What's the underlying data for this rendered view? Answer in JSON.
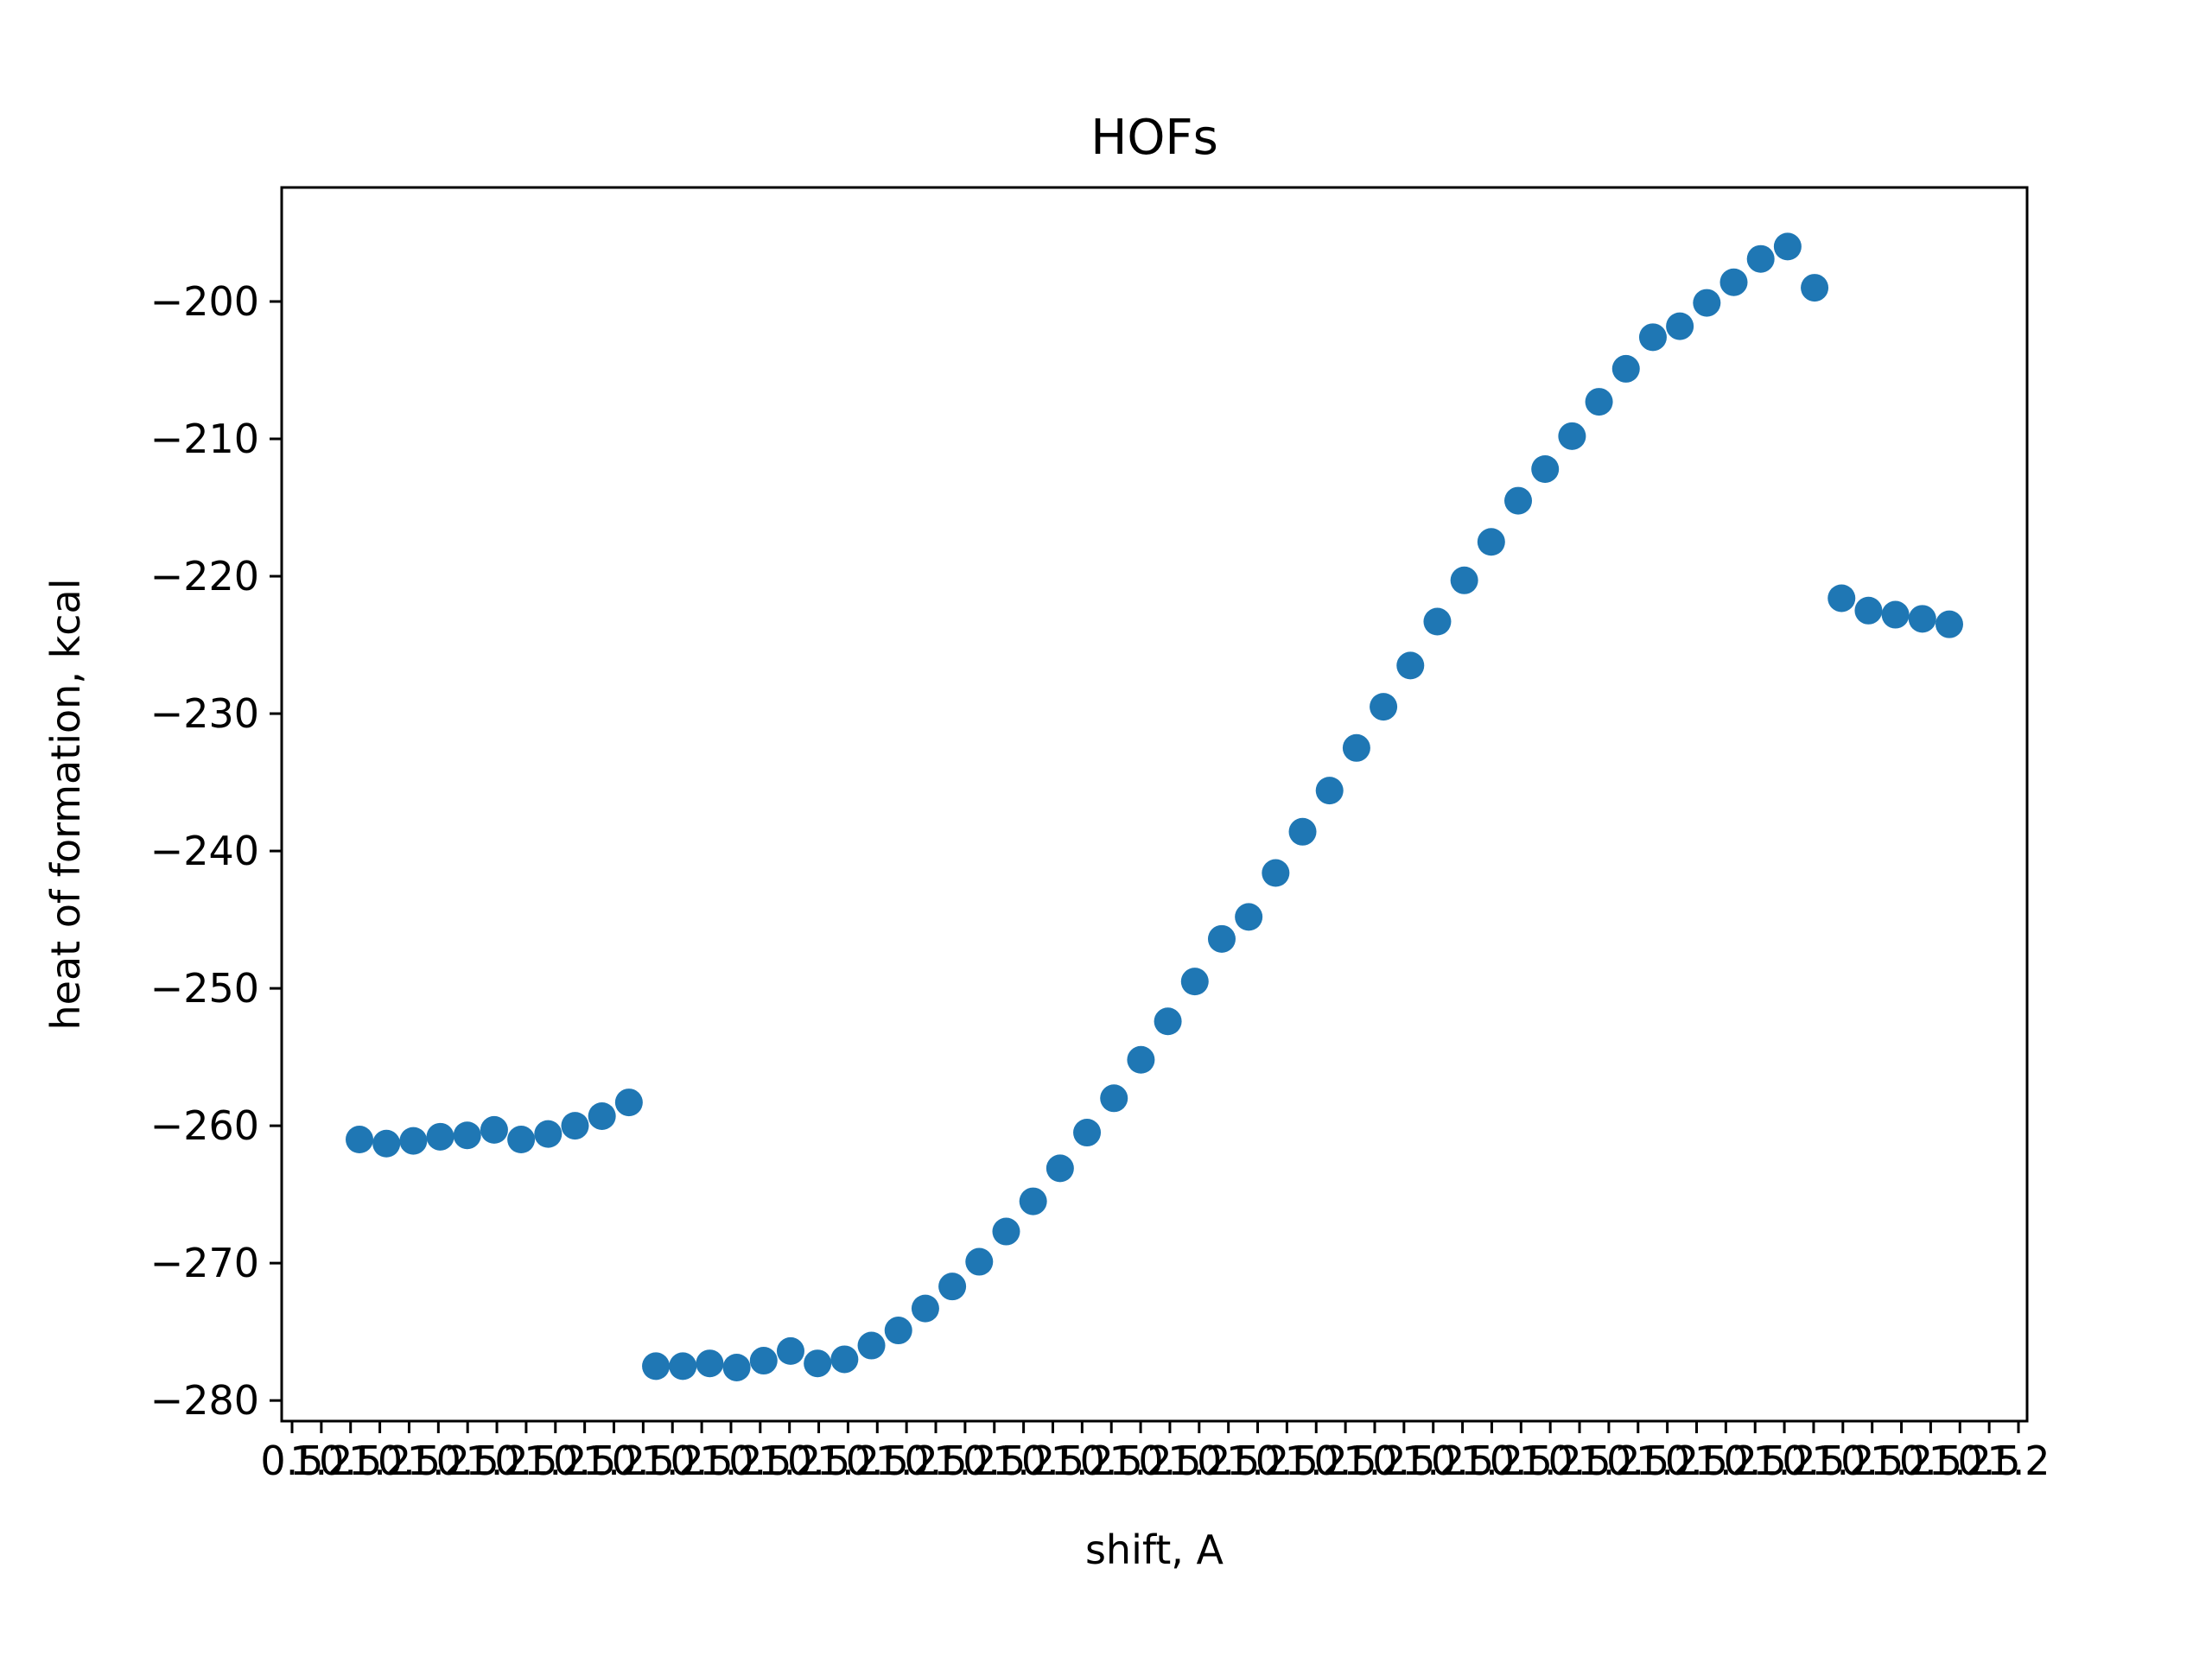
{
  "chart_data": {
    "type": "scatter",
    "title": "HOFs",
    "xlabel": "shift, A",
    "ylabel": "heat of formation, kcal",
    "ylim": [
      -281.5,
      -191.7
    ],
    "yticks": [
      -200,
      -210,
      -220,
      -230,
      -240,
      -250,
      -260,
      -270,
      -280
    ],
    "ytick_labels": [
      "−200",
      "−210",
      "−220",
      "−230",
      "−240",
      "−250",
      "−260",
      "−270",
      "−280"
    ],
    "x_tick_count": 60,
    "x_tick_labels_note": "overlapping, illegible",
    "grid": false,
    "series": [
      {
        "color": "#1f77b4",
        "x": [
          0,
          1,
          2,
          3,
          4,
          5,
          6,
          7,
          8,
          9,
          10,
          11,
          12,
          13,
          14,
          15,
          16,
          17,
          18,
          19,
          20,
          21,
          22,
          23,
          24,
          25,
          26,
          27,
          28,
          29,
          30,
          31,
          32,
          33,
          34,
          35,
          36,
          37,
          38,
          39,
          40,
          41,
          42,
          43,
          44,
          45,
          46,
          47,
          48,
          49,
          50,
          51,
          52,
          53,
          54,
          55,
          56,
          57,
          58,
          59
        ],
        "values": [
          -261.0,
          -261.3,
          -261.1,
          -260.8,
          -260.7,
          -260.3,
          -261.0,
          -260.6,
          -260.0,
          -259.3,
          -258.3,
          -277.5,
          -277.5,
          -277.3,
          -277.6,
          -277.1,
          -276.4,
          -277.3,
          -277.0,
          -276.0,
          -274.9,
          -273.3,
          -271.7,
          -269.9,
          -267.7,
          -265.5,
          -263.1,
          -260.5,
          -258.0,
          -255.2,
          -252.4,
          -249.5,
          -246.4,
          -244.8,
          -241.6,
          -238.6,
          -235.6,
          -232.5,
          -229.5,
          -226.5,
          -223.3,
          -220.3,
          -217.5,
          -214.5,
          -212.2,
          -209.8,
          -207.3,
          -204.9,
          -202.6,
          -201.8,
          -200.1,
          -198.6,
          -196.9,
          -196.0,
          -199.0,
          -221.6,
          -222.5,
          -222.8,
          -223.1,
          -223.5
        ]
      }
    ]
  }
}
